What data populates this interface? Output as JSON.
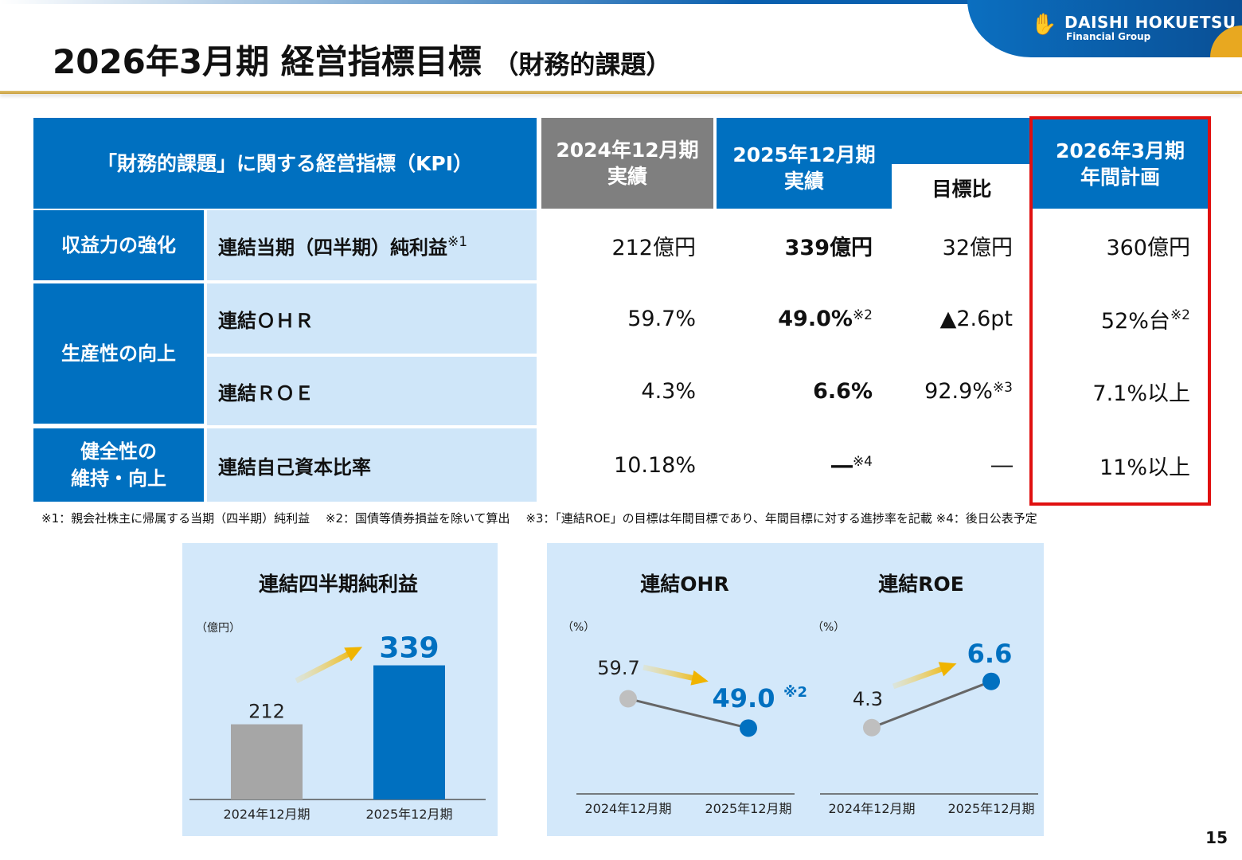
{
  "header": {
    "title": "2026年3月期 経営指標目標",
    "title_sub": "（財務的課題）",
    "logo_line1": "DAISHI HOKUETSU",
    "logo_line2": "Financial Group"
  },
  "table": {
    "kpi_header": "「財務的課題」に関する経営指標（KPI）",
    "col_2024": [
      "2024年12月期",
      "実績"
    ],
    "col_2025": [
      "2025年12月期",
      "実績"
    ],
    "col_ratio": "目標比",
    "col_2026": [
      "2026年3月期",
      "年間計画"
    ],
    "categories": [
      "収益力の強化",
      "生産性の向上",
      "健全性の\n維持・向上"
    ],
    "rows": [
      {
        "label": "連結当期（四半期）純利益",
        "label_note": "※1",
        "v2024": "212億円",
        "v2025": "339億円",
        "v2025_note": "",
        "ratio": "32億円",
        "ratio_note": "",
        "plan": "360億円",
        "plan_note": ""
      },
      {
        "label": "連結ＯＨＲ",
        "label_note": "",
        "v2024": "59.7%",
        "v2025": "49.0%",
        "v2025_note": "※2",
        "ratio": "▲2.6pt",
        "ratio_note": "",
        "plan": "52%台",
        "plan_note": "※2"
      },
      {
        "label": "連結ＲＯＥ",
        "label_note": "",
        "v2024": "4.3%",
        "v2025": "6.6%",
        "v2025_note": "",
        "ratio": "92.9%",
        "ratio_note": "※3",
        "plan": "7.1%以上",
        "plan_note": ""
      },
      {
        "label": "連結自己資本比率",
        "label_note": "",
        "v2024": "10.18%",
        "v2025": "―",
        "v2025_note": "※4",
        "ratio": "―",
        "ratio_note": "",
        "plan": "11%以上",
        "plan_note": ""
      }
    ],
    "highlight_color": "#e01010"
  },
  "notes": "※1：親会社株主に帰属する当期（四半期）純利益　 ※2：国債等債券損益を除いて算出　 ※3：「連結ROE」の目標は年間目標であり、年間目標に対する進捗率を記載 ※4：後日公表予定",
  "chart_data": [
    {
      "type": "bar",
      "title": "連結四半期純利益",
      "ylabel": "（億円）",
      "categories": [
        "2024年12月期",
        "2025年12月期"
      ],
      "values": [
        212,
        339
      ],
      "colors": [
        "#a6a6a6",
        "#0070c0"
      ],
      "ylim": [
        50,
        400
      ]
    },
    {
      "type": "line",
      "title": "連結OHR",
      "ylabel": "（%）",
      "categories": [
        "2024年12月期",
        "2025年12月期"
      ],
      "values": [
        59.7,
        49.0
      ],
      "labels": [
        "59.7",
        "49.0"
      ],
      "annotation": "※2",
      "ylim": [
        25,
        88
      ]
    },
    {
      "type": "line",
      "title": "連結ROE",
      "ylabel": "（%）",
      "categories": [
        "2024年12月期",
        "2025年12月期"
      ],
      "values": [
        4.3,
        6.6
      ],
      "labels": [
        "4.3",
        "6.6"
      ],
      "ylim": [
        1,
        9.6
      ]
    }
  ],
  "page_number": "15"
}
